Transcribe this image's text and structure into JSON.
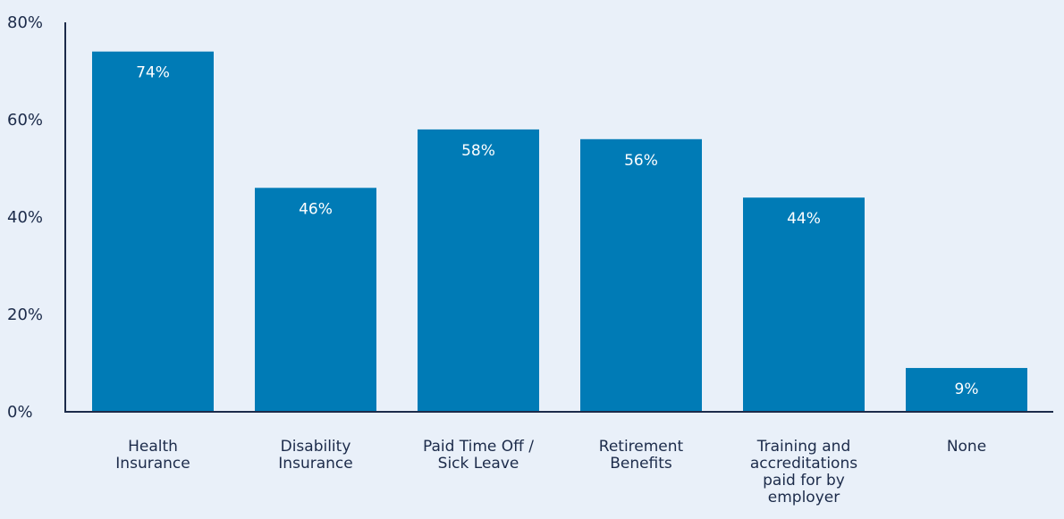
{
  "chart_data": {
    "type": "bar",
    "categories": [
      "Health Insurance",
      "Disability Insurance",
      "Paid Time Off / Sick Leave",
      "Retirement Benefits",
      "Training and accreditations paid for by employer",
      "None"
    ],
    "category_label_lines": [
      [
        "Health",
        "Insurance"
      ],
      [
        "Disability",
        "Insurance"
      ],
      [
        "Paid Time Off /",
        "Sick Leave"
      ],
      [
        "Retirement",
        "Benefits"
      ],
      [
        "Training and",
        "accreditations",
        "paid for by",
        "employer"
      ],
      [
        "None"
      ]
    ],
    "values": [
      74,
      46,
      58,
      56,
      44,
      9
    ],
    "data_labels": [
      "74%",
      "46%",
      "58%",
      "56%",
      "44%",
      "9%"
    ],
    "title": "",
    "xlabel": "",
    "ylabel": "",
    "ylim": [
      0,
      80
    ],
    "yticks": [
      0,
      20,
      40,
      60,
      80
    ],
    "ytick_labels": [
      "0%",
      "20%",
      "40%",
      "60%",
      "80%"
    ],
    "grid": false,
    "legend": "none",
    "bar_color": "#007bb6",
    "axis_color": "#1c2b4a",
    "background_color": "#e9f0f9"
  }
}
